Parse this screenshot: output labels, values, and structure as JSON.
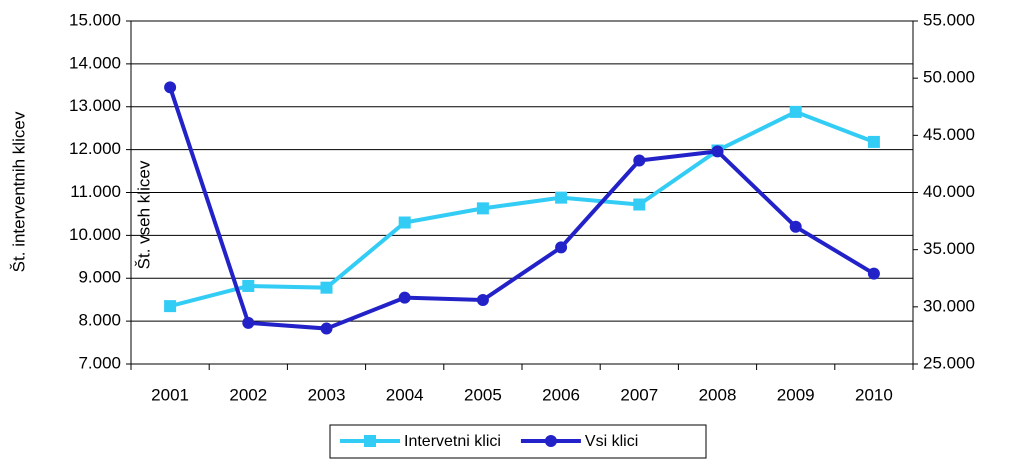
{
  "chart_data": {
    "type": "line",
    "categories": [
      "2001",
      "2002",
      "2003",
      "2004",
      "2005",
      "2006",
      "2007",
      "2008",
      "2009",
      "2010"
    ],
    "series": [
      {
        "name": "Intervetni klici",
        "color": "#33ccf5",
        "marker": "square",
        "axis": "y",
        "values": [
          8350,
          8820,
          8780,
          10300,
          10630,
          10880,
          10720,
          11980,
          12880,
          12180
        ]
      },
      {
        "name": "Vsi klici",
        "color": "#2222c8",
        "marker": "circle",
        "axis": "y2",
        "values": [
          49200,
          28600,
          28100,
          30800,
          30600,
          35200,
          42800,
          43600,
          37000,
          32900
        ]
      }
    ],
    "ylabel": "Št. interventnih klicev",
    "y2label": "Št. vseh klicev",
    "ylim": [
      7000,
      15000
    ],
    "yticks": [
      {
        "value": 7000,
        "label": "7.000"
      },
      {
        "value": 8000,
        "label": "8.000"
      },
      {
        "value": 9000,
        "label": "9.000"
      },
      {
        "value": 10000,
        "label": "10.000"
      },
      {
        "value": 11000,
        "label": "11.000"
      },
      {
        "value": 12000,
        "label": "12.000"
      },
      {
        "value": 13000,
        "label": "13.000"
      },
      {
        "value": 14000,
        "label": "14.000"
      },
      {
        "value": 15000,
        "label": "15.000"
      }
    ],
    "y2lim": [
      25000,
      55000
    ],
    "y2ticks": [
      {
        "value": 25000,
        "label": "25.000"
      },
      {
        "value": 30000,
        "label": "30.000"
      },
      {
        "value": 35000,
        "label": "35.000"
      },
      {
        "value": 40000,
        "label": "40.000"
      },
      {
        "value": 45000,
        "label": "45.000"
      },
      {
        "value": 50000,
        "label": "50.000"
      },
      {
        "value": 55000,
        "label": "55.000"
      }
    ],
    "grid": true,
    "legend": "bottom"
  }
}
